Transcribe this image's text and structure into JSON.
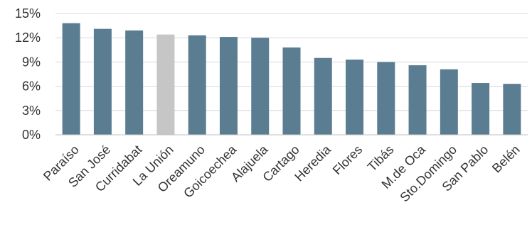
{
  "chart_data": {
    "type": "bar",
    "title": "",
    "xlabel": "",
    "ylabel": "",
    "categories": [
      "Paraíso",
      "San José",
      "Curridabat",
      "La Unión",
      "Oreamuno",
      "Goicoechea",
      "Alajuela",
      "Cartago",
      "Heredia",
      "Flores",
      "Tibás",
      "M.de Oca",
      "Sto.Domingo",
      "San Pablo",
      "Belén"
    ],
    "values": [
      13.8,
      13.1,
      12.9,
      12.4,
      12.3,
      12.1,
      12.0,
      10.8,
      9.5,
      9.3,
      9.0,
      8.6,
      8.1,
      6.4,
      6.3
    ],
    "ylim": [
      0,
      15
    ],
    "yticks": [
      0,
      3,
      6,
      9,
      12,
      15
    ],
    "ytick_labels": [
      "0%",
      "3%",
      "6%",
      "9%",
      "12%",
      "15%"
    ],
    "grid": true,
    "legend": "none",
    "colors": {
      "bar": "#5a7d92",
      "highlight": "#c6c6c6",
      "grid": "#d9d9d9",
      "axis": "#bfbfbf"
    },
    "highlight_category": "La Unión"
  }
}
